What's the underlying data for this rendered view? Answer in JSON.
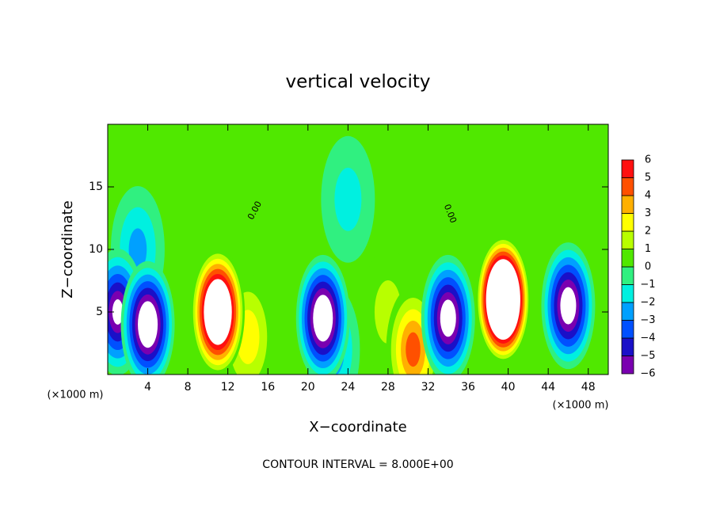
{
  "chart_data": {
    "type": "contour",
    "title": "vertical velocity",
    "x_label": "X−coordinate",
    "y_label": "Z−coordinate",
    "x_unit": "(×1000 m)",
    "subtitle": "CONTOUR INTERVAL = 8.000E+00",
    "contour_labels": [
      "0.00",
      "0.00"
    ],
    "xlim": [
      0,
      50
    ],
    "xticks": [
      4,
      8,
      12,
      16,
      20,
      24,
      28,
      32,
      36,
      40,
      44,
      48
    ],
    "ylim": [
      0,
      20
    ],
    "yticks": [
      5,
      10,
      15
    ],
    "cells": [
      {
        "x": 3,
        "z": 10,
        "value": -2.5
      },
      {
        "x": 24,
        "z": 14,
        "value": -1.5
      },
      {
        "x": 28,
        "z": 5,
        "value": 1.5
      },
      {
        "x": 14,
        "z": 3,
        "value": 3
      },
      {
        "x": 22.5,
        "z": 2,
        "value": -3
      },
      {
        "x": 1,
        "z": 5,
        "value": -7
      },
      {
        "x": 4,
        "z": 4,
        "value": -9
      },
      {
        "x": 11,
        "z": 5,
        "value": 12
      },
      {
        "x": 21.5,
        "z": 4.5,
        "value": -9
      },
      {
        "x": 30.5,
        "z": 2,
        "value": 5
      },
      {
        "x": 34,
        "z": 4.5,
        "value": -8
      },
      {
        "x": 39.5,
        "z": 6,
        "value": 16
      },
      {
        "x": 46,
        "z": 5.5,
        "value": -8
      }
    ],
    "colorbar": {
      "levels": [
        {
          "value": -6,
          "label": "−6"
        },
        {
          "value": -5,
          "label": "−5"
        },
        {
          "value": -4,
          "label": "−4"
        },
        {
          "value": -3,
          "label": "−3"
        },
        {
          "value": -2,
          "label": "−2"
        },
        {
          "value": -1,
          "label": "−1"
        },
        0,
        1,
        2,
        3,
        4,
        5,
        6
      ],
      "colors": [
        "#7a00b0",
        "#1a10c8",
        "#0050ff",
        "#00a0ff",
        "#00f0e0",
        "#30f080",
        "#50e800",
        "#b8ff00",
        "#ffff00",
        "#ffb000",
        "#ff5000",
        "#ff1010"
      ],
      "above": "#ffffff"
    }
  }
}
